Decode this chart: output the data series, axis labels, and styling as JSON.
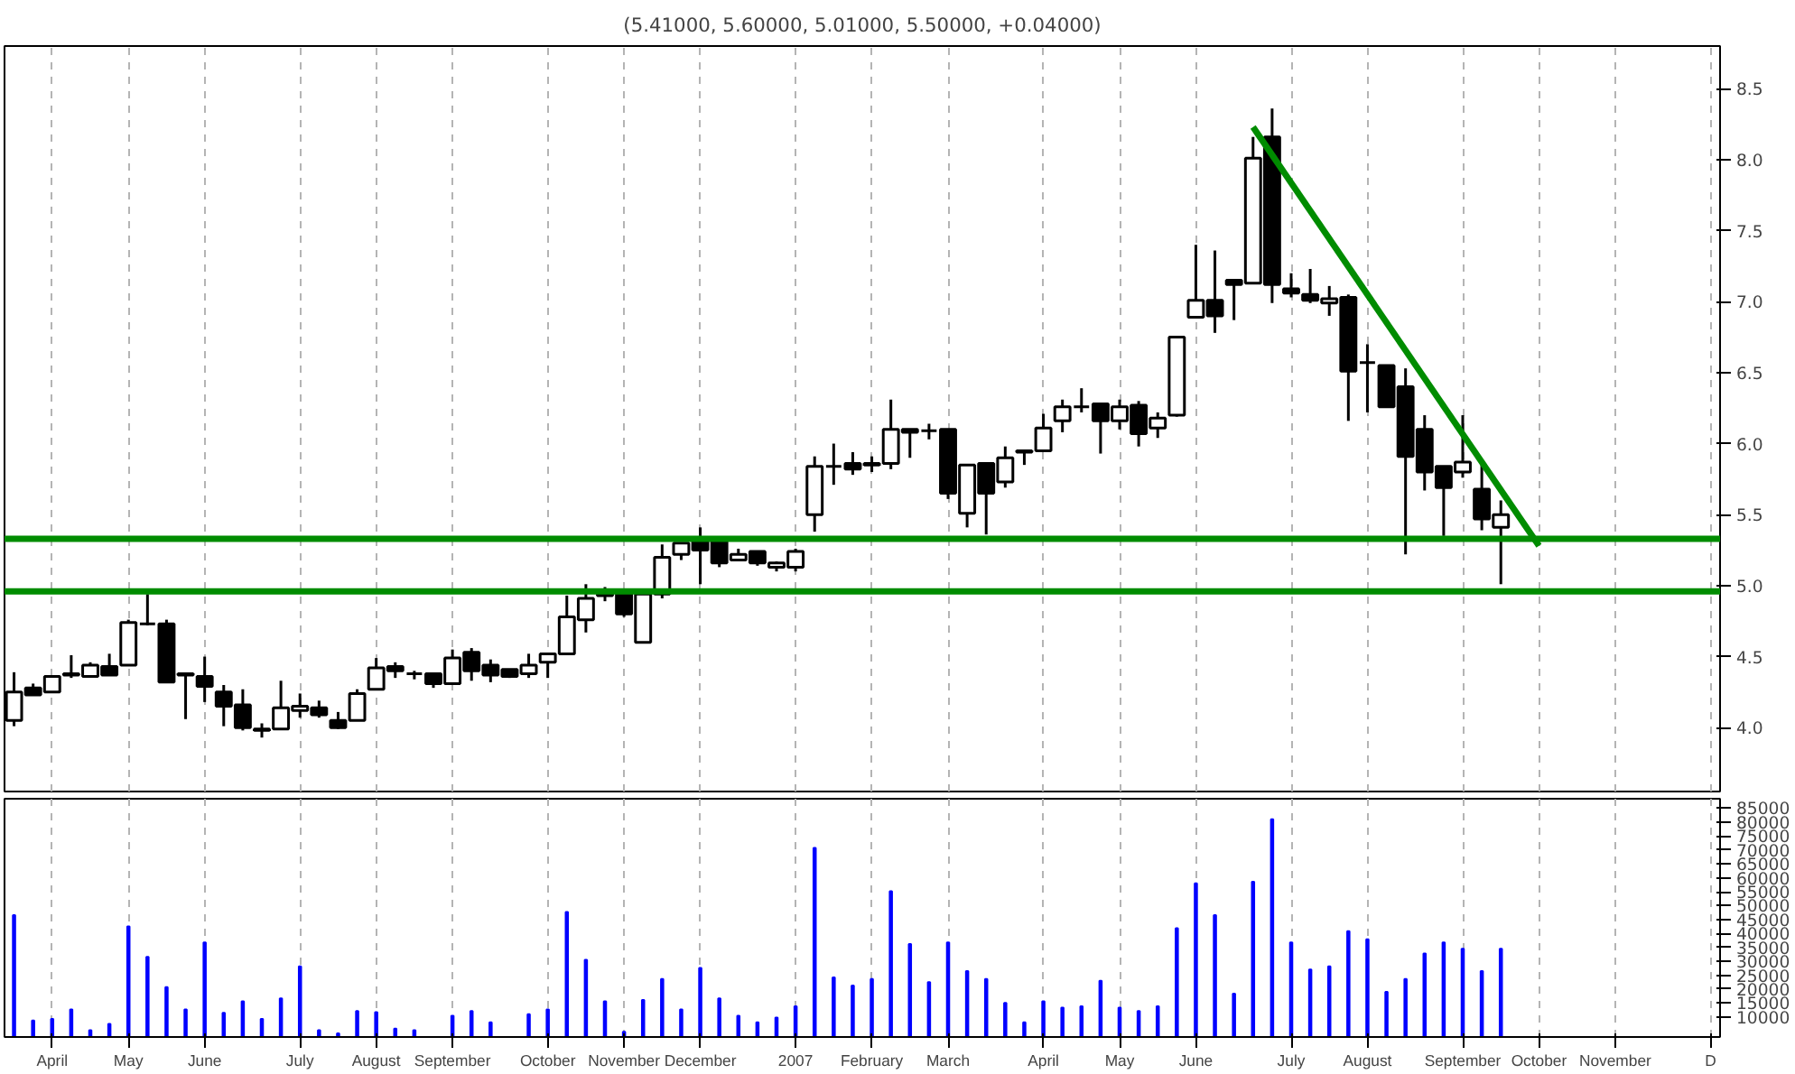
{
  "chart_data": [
    {
      "type": "candlestick",
      "title": "(5.41000, 5.60000, 5.01000, 5.50000, +0.04000)",
      "x": [
        "2006-03-24",
        "2006-03-31",
        "2006-04-07",
        "2006-04-14",
        "2006-04-21",
        "2006-04-28",
        "2006-05-05",
        "2006-05-12",
        "2006-05-19",
        "2006-05-26",
        "2006-06-02",
        "2006-06-09",
        "2006-06-16",
        "2006-06-23",
        "2006-06-30",
        "2006-07-07",
        "2006-07-14",
        "2006-07-21",
        "2006-07-28",
        "2006-08-04",
        "2006-08-11",
        "2006-08-18",
        "2006-08-25",
        "2006-09-01",
        "2006-09-08",
        "2006-09-15",
        "2006-09-22",
        "2006-09-29",
        "2006-10-06",
        "2006-10-13",
        "2006-10-20",
        "2006-10-27",
        "2006-11-03",
        "2006-11-10",
        "2006-11-17",
        "2006-11-24",
        "2006-12-01",
        "2006-12-08",
        "2006-12-15",
        "2006-12-22",
        "2006-12-29",
        "2007-01-05",
        "2007-01-12",
        "2007-01-19",
        "2007-01-26",
        "2007-02-02",
        "2007-02-09",
        "2007-02-16",
        "2007-02-23",
        "2007-03-02",
        "2007-03-09",
        "2007-03-16",
        "2007-03-23",
        "2007-03-30",
        "2007-04-06",
        "2007-04-13",
        "2007-04-20",
        "2007-04-27",
        "2007-05-04",
        "2007-05-11",
        "2007-05-18",
        "2007-05-25",
        "2007-06-01",
        "2007-06-08",
        "2007-06-15",
        "2007-06-22",
        "2007-06-29",
        "2007-07-06",
        "2007-07-13",
        "2007-07-20",
        "2007-07-27",
        "2007-08-03",
        "2007-08-10",
        "2007-08-17",
        "2007-08-24",
        "2007-08-31",
        "2007-09-07",
        "2007-09-14",
        "2007-09-21"
      ],
      "ohlc": [
        [
          4.05,
          4.39,
          4.01,
          4.25
        ],
        [
          4.28,
          4.31,
          4.23,
          4.23
        ],
        [
          4.25,
          4.36,
          4.25,
          4.36
        ],
        [
          4.37,
          4.51,
          4.35,
          4.38
        ],
        [
          4.36,
          4.46,
          4.36,
          4.44
        ],
        [
          4.43,
          4.52,
          4.37,
          4.37
        ],
        [
          4.44,
          4.76,
          4.44,
          4.74
        ],
        [
          4.73,
          4.94,
          4.72,
          4.73
        ],
        [
          4.73,
          4.76,
          4.32,
          4.32
        ],
        [
          4.38,
          4.38,
          4.06,
          4.37
        ],
        [
          4.36,
          4.5,
          4.18,
          4.29
        ],
        [
          4.25,
          4.3,
          4.01,
          4.15
        ],
        [
          4.16,
          4.27,
          3.98,
          4.0
        ],
        [
          3.99,
          4.03,
          3.93,
          3.98
        ],
        [
          3.99,
          4.33,
          3.99,
          4.14
        ],
        [
          4.12,
          4.24,
          4.07,
          4.15
        ],
        [
          4.14,
          4.19,
          4.07,
          4.09
        ],
        [
          4.05,
          4.11,
          3.99,
          4.0
        ],
        [
          4.05,
          4.27,
          4.05,
          4.24
        ],
        [
          4.27,
          4.49,
          4.27,
          4.42
        ],
        [
          4.43,
          4.46,
          4.35,
          4.4
        ],
        [
          4.38,
          4.4,
          4.34,
          4.38
        ],
        [
          4.38,
          4.38,
          4.28,
          4.31
        ],
        [
          4.31,
          4.55,
          4.31,
          4.49
        ],
        [
          4.53,
          4.56,
          4.33,
          4.4
        ],
        [
          4.44,
          4.48,
          4.32,
          4.37
        ],
        [
          4.41,
          4.41,
          4.35,
          4.36
        ],
        [
          4.38,
          4.52,
          4.35,
          4.44
        ],
        [
          4.46,
          4.52,
          4.35,
          4.52
        ],
        [
          4.52,
          4.93,
          4.52,
          4.78
        ],
        [
          4.76,
          5.01,
          4.67,
          4.91
        ],
        [
          4.93,
          4.99,
          4.89,
          4.94
        ],
        [
          4.94,
          4.94,
          4.78,
          4.8
        ],
        [
          4.6,
          4.94,
          4.6,
          4.94
        ],
        [
          4.94,
          5.29,
          4.91,
          5.2
        ],
        [
          5.22,
          5.3,
          5.18,
          5.3
        ],
        [
          5.31,
          5.41,
          5.01,
          5.25
        ],
        [
          5.31,
          5.31,
          5.13,
          5.16
        ],
        [
          5.18,
          5.26,
          5.18,
          5.22
        ],
        [
          5.24,
          5.24,
          5.14,
          5.16
        ],
        [
          5.13,
          5.17,
          5.1,
          5.16
        ],
        [
          5.13,
          5.26,
          5.1,
          5.24
        ],
        [
          5.5,
          5.91,
          5.38,
          5.84
        ],
        [
          5.84,
          6.0,
          5.71,
          5.84
        ],
        [
          5.86,
          5.94,
          5.78,
          5.82
        ],
        [
          5.85,
          5.91,
          5.8,
          5.86
        ],
        [
          5.86,
          6.31,
          5.82,
          6.1
        ],
        [
          6.1,
          6.1,
          5.9,
          6.08
        ],
        [
          6.09,
          6.14,
          6.03,
          6.09
        ],
        [
          6.1,
          6.1,
          5.61,
          5.65
        ],
        [
          5.51,
          5.85,
          5.41,
          5.85
        ],
        [
          5.86,
          5.87,
          5.36,
          5.65
        ],
        [
          5.73,
          5.98,
          5.69,
          5.9
        ],
        [
          5.95,
          5.95,
          5.85,
          5.94
        ],
        [
          5.95,
          6.21,
          5.95,
          6.11
        ],
        [
          6.16,
          6.31,
          6.08,
          6.26
        ],
        [
          6.26,
          6.39,
          6.22,
          6.26
        ],
        [
          6.28,
          6.28,
          5.93,
          6.16
        ],
        [
          6.16,
          6.31,
          6.1,
          6.26
        ],
        [
          6.27,
          6.3,
          5.98,
          6.07
        ],
        [
          6.11,
          6.22,
          6.04,
          6.18
        ],
        [
          6.2,
          6.75,
          6.19,
          6.75
        ],
        [
          6.89,
          7.4,
          6.89,
          7.01
        ],
        [
          7.01,
          7.36,
          6.78,
          6.9
        ],
        [
          7.15,
          7.15,
          6.87,
          7.12
        ],
        [
          7.13,
          8.16,
          7.13,
          8.01
        ],
        [
          8.16,
          8.36,
          6.99,
          7.12
        ],
        [
          7.09,
          7.2,
          7.03,
          7.06
        ],
        [
          7.05,
          7.23,
          6.99,
          7.01
        ],
        [
          6.99,
          7.11,
          6.9,
          7.02
        ],
        [
          7.03,
          7.05,
          6.16,
          6.51
        ],
        [
          6.57,
          6.7,
          6.22,
          6.57
        ],
        [
          6.55,
          6.55,
          6.26,
          6.26
        ],
        [
          6.4,
          6.53,
          5.22,
          5.91
        ],
        [
          6.1,
          6.2,
          5.67,
          5.8
        ],
        [
          5.84,
          5.84,
          5.35,
          5.69
        ],
        [
          5.8,
          6.2,
          5.76,
          5.87
        ],
        [
          5.68,
          5.86,
          5.39,
          5.47
        ],
        [
          5.41,
          5.6,
          5.01,
          5.5
        ]
      ],
      "series": [
        {
          "type": "line",
          "x": [
            "2007-06-22",
            "2007-10-05"
          ],
          "values": [
            8.23,
            5.28
          ],
          "color": "#008c00"
        }
      ],
      "ref_lines": [
        {
          "axis": "y",
          "value": 5.33,
          "color": "#008c00"
        },
        {
          "axis": "y",
          "value": 4.96,
          "color": "#008c00"
        }
      ],
      "xlim": [
        "2006-03-20T12:00",
        "2007-12-10T12:00"
      ],
      "ylim": [
        3.55,
        8.8
      ],
      "xticks": [
        {
          "value": "2006-04-07",
          "label": null
        },
        {
          "value": "2006-05-05",
          "label": null
        },
        {
          "value": "2006-06-02",
          "label": null
        },
        {
          "value": "2006-07-07",
          "label": null
        },
        {
          "value": "2006-08-04",
          "label": null
        },
        {
          "value": "2006-09-01",
          "label": null
        },
        {
          "value": "2006-10-06",
          "label": null
        },
        {
          "value": "2006-11-03",
          "label": null
        },
        {
          "value": "2006-12-01",
          "label": null
        },
        {
          "value": "2007-01-05",
          "label": null
        },
        {
          "value": "2007-02-02",
          "label": null
        },
        {
          "value": "2007-03-02",
          "label": null
        },
        {
          "value": "2007-04-06",
          "label": null
        },
        {
          "value": "2007-05-04",
          "label": null
        },
        {
          "value": "2007-06-01",
          "label": null
        },
        {
          "value": "2007-07-06",
          "label": null
        },
        {
          "value": "2007-08-03",
          "label": null
        },
        {
          "value": "2007-09-07",
          "label": null
        },
        {
          "value": "2007-10-05",
          "label": null
        },
        {
          "value": "2007-11-02",
          "label": null
        },
        {
          "value": "2007-12-07",
          "label": null
        }
      ],
      "yticks": [
        {
          "value": 4,
          "label": "4.0"
        },
        {
          "value": 4.5,
          "label": "4.5"
        },
        {
          "value": 5,
          "label": "5.0"
        },
        {
          "value": 5.5,
          "label": "5.5"
        },
        {
          "value": 6,
          "label": "6.0"
        },
        {
          "value": 6.5,
          "label": "6.5"
        },
        {
          "value": 7,
          "label": "7.0"
        },
        {
          "value": 7.5,
          "label": "7.5"
        },
        {
          "value": 8,
          "label": "8.0"
        },
        {
          "value": 8.5,
          "label": "8.5"
        }
      ],
      "grid": "x",
      "tick_labels": "y"
    },
    {
      "type": "bar",
      "color": "#0000ff",
      "x": [
        "2006-03-24",
        "2006-03-31",
        "2006-04-07",
        "2006-04-14",
        "2006-04-21",
        "2006-04-28",
        "2006-05-05",
        "2006-05-12",
        "2006-05-19",
        "2006-05-26",
        "2006-06-02",
        "2006-06-09",
        "2006-06-16",
        "2006-06-23",
        "2006-06-30",
        "2006-07-07",
        "2006-07-14",
        "2006-07-21",
        "2006-07-28",
        "2006-08-04",
        "2006-08-11",
        "2006-08-18",
        "2006-08-25",
        "2006-09-01",
        "2006-09-08",
        "2006-09-15",
        "2006-09-22",
        "2006-09-29",
        "2006-10-06",
        "2006-10-13",
        "2006-10-20",
        "2006-10-27",
        "2006-11-03",
        "2006-11-10",
        "2006-11-17",
        "2006-11-24",
        "2006-12-01",
        "2006-12-08",
        "2006-12-15",
        "2006-12-22",
        "2006-12-29",
        "2007-01-05",
        "2007-01-12",
        "2007-01-19",
        "2007-01-26",
        "2007-02-02",
        "2007-02-09",
        "2007-02-16",
        "2007-02-23",
        "2007-03-02",
        "2007-03-09",
        "2007-03-16",
        "2007-03-23",
        "2007-03-30",
        "2007-04-06",
        "2007-04-13",
        "2007-04-20",
        "2007-04-27",
        "2007-05-04",
        "2007-05-11",
        "2007-05-18",
        "2007-05-25",
        "2007-06-01",
        "2007-06-08",
        "2007-06-15",
        "2007-06-22",
        "2007-06-29",
        "2007-07-06",
        "2007-07-13",
        "2007-07-20",
        "2007-07-27",
        "2007-08-03",
        "2007-08-10",
        "2007-08-17",
        "2007-08-24",
        "2007-08-31",
        "2007-09-07",
        "2007-09-14",
        "2007-09-21"
      ],
      "values": [
        46600,
        8700,
        9300,
        12700,
        5200,
        7500,
        42500,
        31600,
        20700,
        12700,
        36800,
        11500,
        15600,
        9300,
        16700,
        28200,
        5200,
        4100,
        12100,
        11700,
        5800,
        5200,
        null,
        10400,
        12100,
        8100,
        null,
        11000,
        12700,
        47700,
        30500,
        15600,
        4700,
        16100,
        23600,
        12700,
        27600,
        16700,
        10400,
        8100,
        9800,
        13800,
        70700,
        24200,
        21300,
        23600,
        55200,
        36200,
        22500,
        36800,
        26500,
        23600,
        15000,
        8100,
        15600,
        13300,
        13800,
        23000,
        13300,
        12100,
        13800,
        41900,
        58000,
        46600,
        18400,
        58600,
        81000,
        36800,
        27000,
        28200,
        40800,
        37900,
        19000,
        23600,
        32800,
        36800,
        34500,
        26500,
        34500
      ],
      "xlim": [
        "2006-03-20T12:00",
        "2007-12-10T12:00"
      ],
      "ylim": [
        2800,
        88400
      ],
      "xticks": [
        {
          "value": "2006-04-07",
          "label": "April"
        },
        {
          "value": "2006-05-05",
          "label": "May"
        },
        {
          "value": "2006-06-02",
          "label": "June"
        },
        {
          "value": "2006-07-07",
          "label": "July"
        },
        {
          "value": "2006-08-04",
          "label": "August"
        },
        {
          "value": "2006-09-01",
          "label": "September"
        },
        {
          "value": "2006-10-06",
          "label": "October"
        },
        {
          "value": "2006-11-03",
          "label": "November"
        },
        {
          "value": "2006-12-01",
          "label": "December"
        },
        {
          "value": "2007-01-05",
          "label": "2007"
        },
        {
          "value": "2007-02-02",
          "label": "February"
        },
        {
          "value": "2007-03-02",
          "label": "March"
        },
        {
          "value": "2007-04-06",
          "label": "April"
        },
        {
          "value": "2007-05-04",
          "label": "May"
        },
        {
          "value": "2007-06-01",
          "label": "June"
        },
        {
          "value": "2007-07-06",
          "label": "July"
        },
        {
          "value": "2007-08-03",
          "label": "August"
        },
        {
          "value": "2007-09-07",
          "label": "September"
        },
        {
          "value": "2007-10-05",
          "label": "October"
        },
        {
          "value": "2007-11-02",
          "label": "November"
        },
        {
          "value": "2007-12-07",
          "label": "D"
        }
      ],
      "yticks": [
        10000,
        15000,
        20000,
        25000,
        30000,
        35000,
        40000,
        45000,
        50000,
        55000,
        60000,
        65000,
        70000,
        75000,
        80000,
        85000
      ],
      "grid": "x"
    }
  ]
}
